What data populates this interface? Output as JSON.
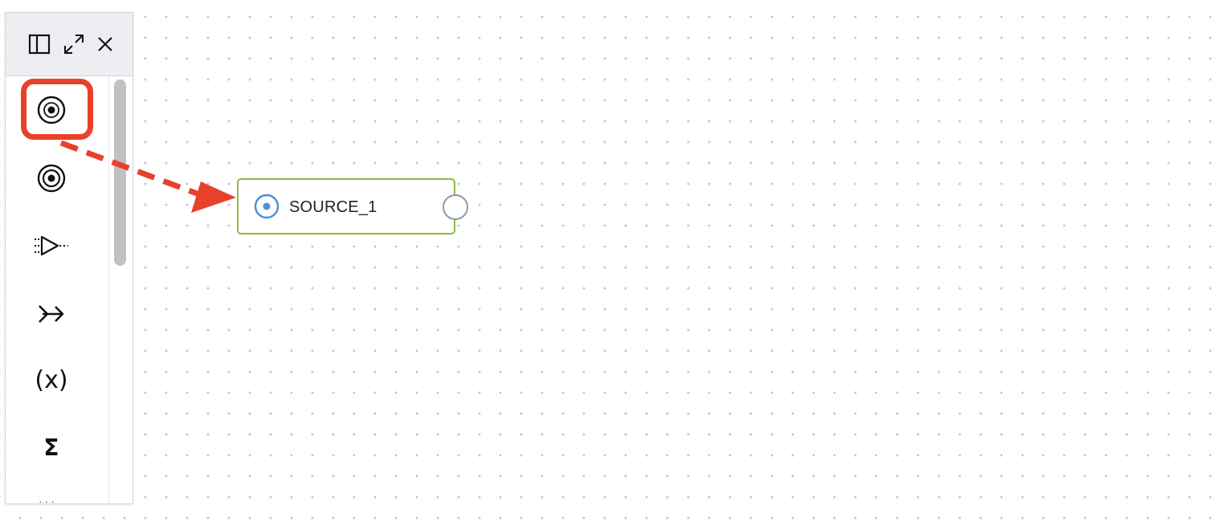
{
  "canvas": {
    "node": {
      "label": "SOURCE_1",
      "type_icon": "source-target-icon",
      "border_color": "#8cba3f",
      "icon_color": "#4a90d9",
      "output_port_icon": "output-port-circle-icon"
    }
  },
  "palette": {
    "header_buttons": [
      {
        "icon": "sidebar-panel-icon"
      },
      {
        "icon": "expand-arrows-icon"
      },
      {
        "icon": "close-icon"
      }
    ],
    "tools": [
      {
        "icon": "source-target-icon",
        "highlighted": true
      },
      {
        "icon": "target-rings-icon"
      },
      {
        "icon": "filter-funnel-icon"
      },
      {
        "icon": "merge-arrow-icon"
      },
      {
        "icon": "variable-x-icon",
        "text": "(x)"
      },
      {
        "icon": "sum-sigma-icon",
        "text": "Σ"
      }
    ]
  },
  "annotation": {
    "color": "#e8412a",
    "highlight_icon": "highlight-box",
    "arrow_icon": "dashed-drag-arrow"
  }
}
